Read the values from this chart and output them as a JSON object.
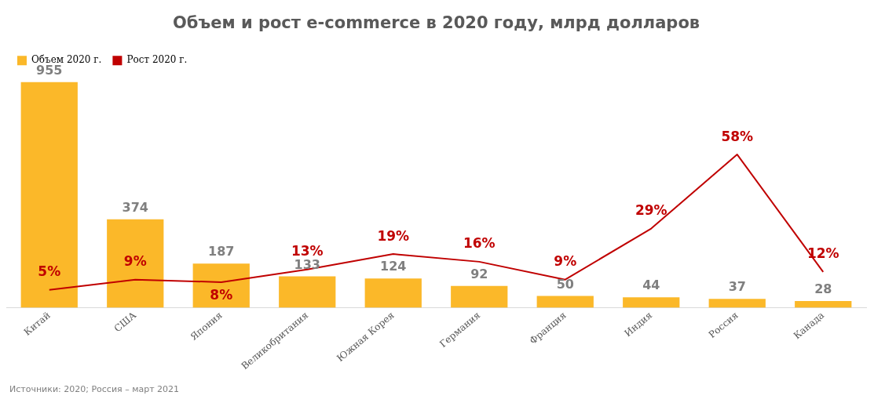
{
  "chart_data": {
    "type": "bar",
    "title": "Объем и рост e-commerce в 2020 году, млрд долларов",
    "categories": [
      "Китай",
      "США",
      "Япония",
      "Великобритания",
      "Южная Корея",
      "Германия",
      "Франция",
      "Индия",
      "Россия",
      "Канада"
    ],
    "series": [
      {
        "name": "Объем 2020 г.",
        "color": "#fbb829",
        "values": [
          955,
          374,
          187,
          133,
          124,
          92,
          50,
          44,
          37,
          28
        ]
      },
      {
        "name": "Рост 2020 г.",
        "type": "line",
        "axis": "y2",
        "color": "#c00000",
        "values": [
          5,
          9,
          8,
          13,
          19,
          16,
          9,
          29,
          58,
          12
        ],
        "value_labels": [
          "5%",
          "9%",
          "8%",
          "13%",
          "19%",
          "16%",
          "9%",
          "29%",
          "58%",
          "12%"
        ]
      }
    ],
    "data_labels": true,
    "legend": "top left",
    "grid": false,
    "tick_labels": "x",
    "marker": "none",
    "annotations": [
      "Источники: 2020; Россия – март 2021"
    ]
  }
}
